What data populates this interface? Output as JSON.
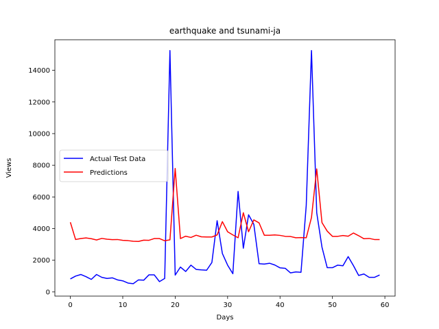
{
  "chart_data": {
    "type": "line",
    "title": "earthquake and tsunami-ja",
    "xlabel": "Days",
    "ylabel": "Views",
    "xlim": [
      -2.95,
      61.95
    ],
    "ylim": [
      -265,
      15930
    ],
    "xticks": [
      0,
      10,
      20,
      30,
      40,
      50,
      60
    ],
    "yticks": [
      0,
      2000,
      4000,
      6000,
      8000,
      10000,
      12000,
      14000
    ],
    "legend_position": "center-left",
    "grid": false,
    "series": [
      {
        "name": "Actual Test Data",
        "color": "#0000ff",
        "values": [
          820,
          1000,
          1100,
          960,
          790,
          1100,
          920,
          850,
          890,
          760,
          700,
          560,
          520,
          760,
          740,
          1080,
          1080,
          650,
          850,
          15250,
          1060,
          1570,
          1290,
          1690,
          1420,
          1390,
          1370,
          1860,
          4500,
          2430,
          1690,
          1150,
          6350,
          2760,
          4870,
          4270,
          1780,
          1760,
          1810,
          1700,
          1520,
          1490,
          1200,
          1260,
          1240,
          5470,
          15250,
          5000,
          2830,
          1530,
          1530,
          1690,
          1650,
          2230,
          1660,
          1040,
          1130,
          920,
          920,
          1070
        ]
      },
      {
        "name": "Predictions",
        "color": "#ff0000",
        "values": [
          4400,
          3310,
          3370,
          3410,
          3360,
          3280,
          3380,
          3330,
          3300,
          3310,
          3260,
          3240,
          3200,
          3190,
          3270,
          3260,
          3370,
          3370,
          3230,
          3290,
          7800,
          3370,
          3520,
          3440,
          3580,
          3480,
          3470,
          3470,
          3600,
          4440,
          3800,
          3600,
          3420,
          5000,
          3800,
          4550,
          4360,
          3580,
          3580,
          3600,
          3570,
          3510,
          3500,
          3420,
          3430,
          3420,
          4700,
          7770,
          4380,
          3840,
          3510,
          3510,
          3560,
          3520,
          3720,
          3550,
          3360,
          3380,
          3310,
          3310
        ]
      }
    ]
  }
}
